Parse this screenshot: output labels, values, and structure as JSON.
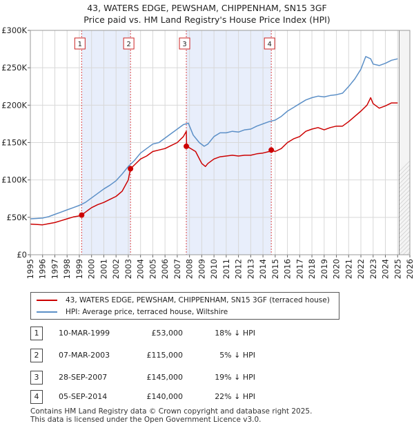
{
  "chart_data": {
    "type": "line",
    "title_line1": "43, WATERS EDGE, PEWSHAM, CHIPPENHAM, SN15 3GF",
    "title_line2": "Price paid vs. HM Land Registry's House Price Index (HPI)",
    "xlabel": "",
    "ylabel": "",
    "xlim": [
      1995,
      2026
    ],
    "ylim": [
      0,
      300000
    ],
    "yticks": [
      {
        "value": 0,
        "label": "£0"
      },
      {
        "value": 50000,
        "label": "£50K"
      },
      {
        "value": 100000,
        "label": "£100K"
      },
      {
        "value": 150000,
        "label": "£150K"
      },
      {
        "value": 200000,
        "label": "£200K"
      },
      {
        "value": 250000,
        "label": "£250K"
      },
      {
        "value": 300000,
        "label": "£300K"
      }
    ],
    "xticks": [
      "1995",
      "1996",
      "1997",
      "1998",
      "1999",
      "2000",
      "2001",
      "2002",
      "2003",
      "2004",
      "2005",
      "2006",
      "2007",
      "2008",
      "2009",
      "2010",
      "2011",
      "2012",
      "2013",
      "2014",
      "2015",
      "2016",
      "2017",
      "2018",
      "2019",
      "2020",
      "2021",
      "2022",
      "2023",
      "2024",
      "2025",
      "2026"
    ],
    "shaded_periods": [
      [
        1999.19,
        2003.18
      ],
      [
        2007.74,
        2014.68
      ]
    ],
    "future_start": 2025.1,
    "series": [
      {
        "name": "43, WATERS EDGE, PEWSHAM, CHIPPENHAM, SN15 3GF (terraced house)",
        "color": "#cc0000",
        "x": [
          1995.0,
          1995.5,
          1996.0,
          1996.5,
          1997.0,
          1997.5,
          1998.0,
          1998.5,
          1999.0,
          1999.19,
          1999.5,
          2000.0,
          2000.5,
          2001.0,
          2001.5,
          2002.0,
          2002.5,
          2003.0,
          2003.18,
          2003.5,
          2004.0,
          2004.5,
          2005.0,
          2005.5,
          2006.0,
          2006.5,
          2007.0,
          2007.5,
          2007.74,
          2007.76,
          2008.0,
          2008.5,
          2009.0,
          2009.3,
          2009.5,
          2010.0,
          2010.5,
          2011.0,
          2011.5,
          2012.0,
          2012.5,
          2013.0,
          2013.5,
          2014.0,
          2014.5,
          2014.68,
          2015.0,
          2015.5,
          2016.0,
          2016.5,
          2017.0,
          2017.5,
          2018.0,
          2018.5,
          2019.0,
          2019.5,
          2020.0,
          2020.5,
          2021.0,
          2021.5,
          2022.0,
          2022.5,
          2022.8,
          2023.0,
          2023.5,
          2024.0,
          2024.5,
          2025.0
        ],
        "values": [
          41000,
          40500,
          40000,
          41500,
          43000,
          45500,
          48000,
          50500,
          52000,
          53000,
          57000,
          63000,
          67000,
          70000,
          74000,
          78000,
          85000,
          100000,
          115000,
          120000,
          128000,
          132000,
          138000,
          140000,
          142000,
          146000,
          150000,
          158000,
          165000,
          145000,
          143000,
          138000,
          122000,
          118000,
          122000,
          128000,
          131000,
          132000,
          133000,
          132000,
          133000,
          133000,
          135000,
          136000,
          138000,
          140000,
          138000,
          142000,
          150000,
          155000,
          158000,
          165000,
          168000,
          170000,
          167000,
          170000,
          172000,
          172000,
          178000,
          185000,
          192000,
          200000,
          210000,
          202000,
          196000,
          199000,
          203000,
          203000
        ]
      },
      {
        "name": "HPI: Average price, terraced house, Wiltshire",
        "color": "#5b8fc7",
        "x": [
          1995.0,
          1995.5,
          1996.0,
          1996.5,
          1997.0,
          1997.5,
          1998.0,
          1998.5,
          1999.0,
          1999.5,
          2000.0,
          2000.5,
          2001.0,
          2001.5,
          2002.0,
          2002.5,
          2003.0,
          2003.5,
          2004.0,
          2004.5,
          2005.0,
          2005.5,
          2006.0,
          2006.5,
          2007.0,
          2007.5,
          2007.9,
          2008.3,
          2008.8,
          2009.2,
          2009.5,
          2010.0,
          2010.5,
          2011.0,
          2011.5,
          2012.0,
          2012.5,
          2013.0,
          2013.5,
          2014.0,
          2014.5,
          2015.0,
          2015.5,
          2016.0,
          2016.5,
          2017.0,
          2017.5,
          2018.0,
          2018.5,
          2019.0,
          2019.5,
          2020.0,
          2020.5,
          2021.0,
          2021.5,
          2022.0,
          2022.4,
          2022.8,
          2023.0,
          2023.5,
          2024.0,
          2024.5,
          2025.0
        ],
        "values": [
          48000,
          48500,
          49000,
          51000,
          54000,
          57000,
          60000,
          63000,
          66000,
          70000,
          76000,
          82000,
          88000,
          93000,
          99000,
          108000,
          118000,
          126000,
          136000,
          142000,
          148000,
          150000,
          156000,
          162000,
          168000,
          174000,
          176000,
          160000,
          150000,
          145000,
          148000,
          158000,
          163000,
          163000,
          165000,
          164000,
          167000,
          168000,
          172000,
          175000,
          178000,
          180000,
          185000,
          192000,
          197000,
          202000,
          207000,
          210000,
          212000,
          211000,
          213000,
          214000,
          216000,
          225000,
          235000,
          248000,
          265000,
          262000,
          255000,
          253000,
          256000,
          260000,
          262000
        ]
      }
    ],
    "sales": [
      {
        "marker": "1",
        "year": 1999.19,
        "price": 53000
      },
      {
        "marker": "2",
        "year": 2003.18,
        "price": 115000
      },
      {
        "marker": "3",
        "year": 2007.74,
        "price": 145000
      },
      {
        "marker": "4",
        "year": 2014.68,
        "price": 140000
      }
    ]
  },
  "legend": {
    "items": [
      {
        "label": "43, WATERS EDGE, PEWSHAM, CHIPPENHAM, SN15 3GF (terraced house)",
        "color": "#cc0000"
      },
      {
        "label": "HPI: Average price, terraced house, Wiltshire",
        "color": "#5b8fc7"
      }
    ]
  },
  "transactions": [
    {
      "num": "1",
      "date": "10-MAR-1999",
      "price": "£53,000",
      "hpi": "18% ↓ HPI"
    },
    {
      "num": "2",
      "date": "07-MAR-2003",
      "price": "£115,000",
      "hpi": "5% ↓ HPI"
    },
    {
      "num": "3",
      "date": "28-SEP-2007",
      "price": "£145,000",
      "hpi": "19% ↓ HPI"
    },
    {
      "num": "4",
      "date": "05-SEP-2014",
      "price": "£140,000",
      "hpi": "22% ↓ HPI"
    }
  ],
  "footer": {
    "line1": "Contains HM Land Registry data © Crown copyright and database right 2025.",
    "line2": "This data is licensed under the Open Government Licence v3.0."
  }
}
